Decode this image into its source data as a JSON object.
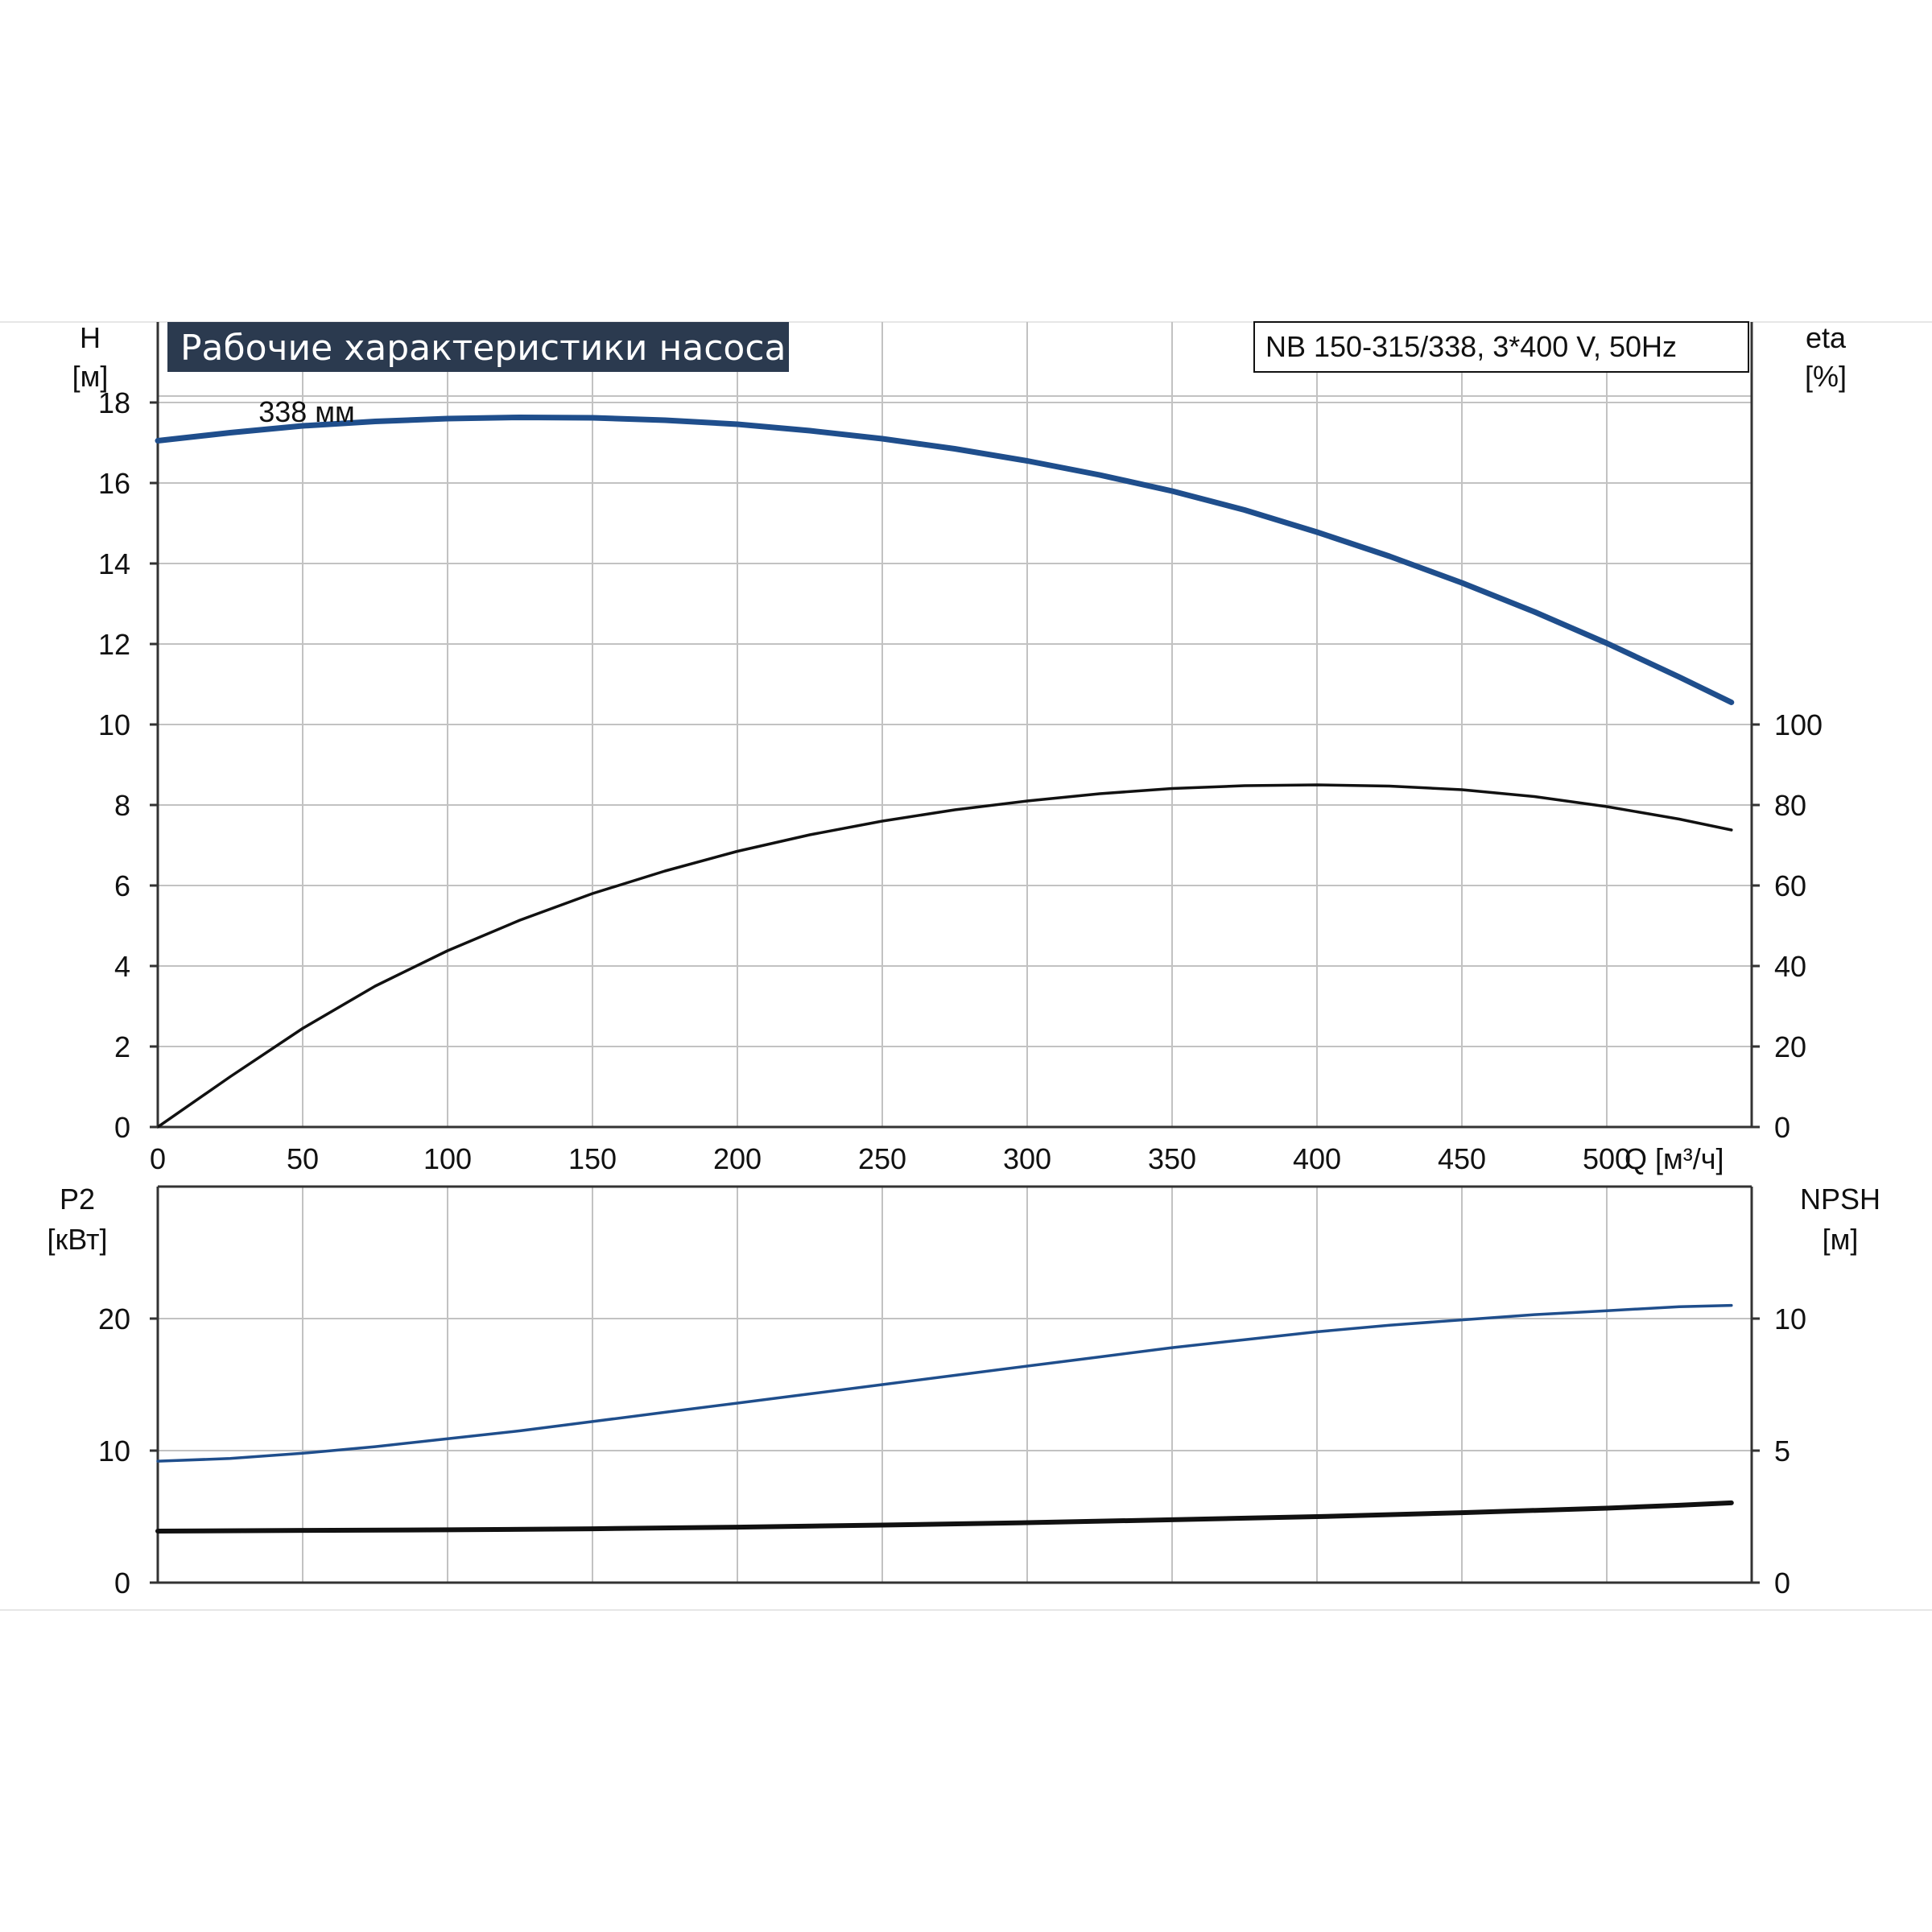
{
  "banner": "Рабочие характеристики насоса",
  "model": "NB 150-315/338, 3*400 V, 50Hz",
  "chart_data": [
    {
      "type": "line",
      "panel": "top",
      "xlabel": "Q [м³/ч]",
      "xlim": [
        0,
        550
      ],
      "x_ticks": [
        "0",
        "50",
        "100",
        "150",
        "200",
        "250",
        "300",
        "350",
        "400",
        "450",
        "500"
      ],
      "y_left": {
        "label_line1": "H",
        "label_line2": "[м]",
        "range": [
          0,
          20
        ],
        "ticks": [
          "0",
          "2",
          "4",
          "6",
          "8",
          "10",
          "12",
          "14",
          "16",
          "18"
        ]
      },
      "y_right": {
        "label_line1": "eta",
        "label_line2": "[%]",
        "range": [
          0,
          200
        ],
        "ticks": [
          "0",
          "20",
          "40",
          "60",
          "80",
          "100"
        ]
      },
      "grid": true,
      "annotations": [
        {
          "text": "338 мм",
          "x": 52,
          "y": 17.8
        }
      ],
      "series": [
        {
          "axis": "left",
          "color": "#1f4e8c",
          "x": [
            0,
            25,
            50,
            75,
            100,
            125,
            150,
            175,
            200,
            225,
            250,
            275,
            300,
            325,
            350,
            375,
            400,
            425,
            450,
            475,
            500,
            525,
            543
          ],
          "y": [
            17.05,
            17.25,
            17.42,
            17.53,
            17.6,
            17.63,
            17.62,
            17.56,
            17.46,
            17.3,
            17.1,
            16.85,
            16.55,
            16.2,
            15.8,
            15.33,
            14.78,
            14.18,
            13.52,
            12.8,
            12.02,
            11.18,
            10.55
          ]
        },
        {
          "axis": "right",
          "color": "#111111",
          "x": [
            0,
            25,
            50,
            75,
            100,
            125,
            150,
            175,
            200,
            225,
            250,
            275,
            300,
            325,
            350,
            375,
            400,
            425,
            450,
            475,
            500,
            525,
            543
          ],
          "y": [
            0,
            12.5,
            24.5,
            35,
            43.8,
            51.4,
            58,
            63.6,
            68.5,
            72.6,
            76,
            78.8,
            81,
            82.8,
            84.1,
            84.8,
            85,
            84.7,
            83.8,
            82.1,
            79.6,
            76.5,
            73.8
          ]
        }
      ]
    },
    {
      "type": "line",
      "panel": "bottom",
      "xlim": [
        0,
        550
      ],
      "y_left": {
        "label_line1": "P2",
        "label_line2": "[кВт]",
        "range": [
          0,
          30
        ],
        "ticks": [
          "0",
          "10",
          "20"
        ]
      },
      "y_right": {
        "label_line1": "NPSH",
        "label_line2": "[м]",
        "range": [
          0,
          15
        ],
        "ticks": [
          "0",
          "5",
          "10"
        ]
      },
      "grid": true,
      "series": [
        {
          "axis": "left",
          "color": "#1f4e8c",
          "x": [
            0,
            25,
            50,
            75,
            100,
            125,
            150,
            175,
            200,
            225,
            250,
            275,
            300,
            325,
            350,
            375,
            400,
            425,
            450,
            475,
            500,
            525,
            543
          ],
          "y": [
            9.2,
            9.4,
            9.8,
            10.3,
            10.9,
            11.5,
            12.2,
            12.9,
            13.6,
            14.3,
            15,
            15.7,
            16.4,
            17.1,
            17.8,
            18.4,
            19,
            19.5,
            19.9,
            20.3,
            20.6,
            20.9,
            21
          ]
        },
        {
          "axis": "right",
          "color": "#111111",
          "x": [
            0,
            50,
            100,
            150,
            200,
            250,
            300,
            350,
            400,
            450,
            500,
            525,
            543
          ],
          "y": [
            1.95,
            1.98,
            2.0,
            2.04,
            2.1,
            2.18,
            2.27,
            2.38,
            2.5,
            2.65,
            2.82,
            2.93,
            3.02
          ]
        }
      ]
    }
  ]
}
